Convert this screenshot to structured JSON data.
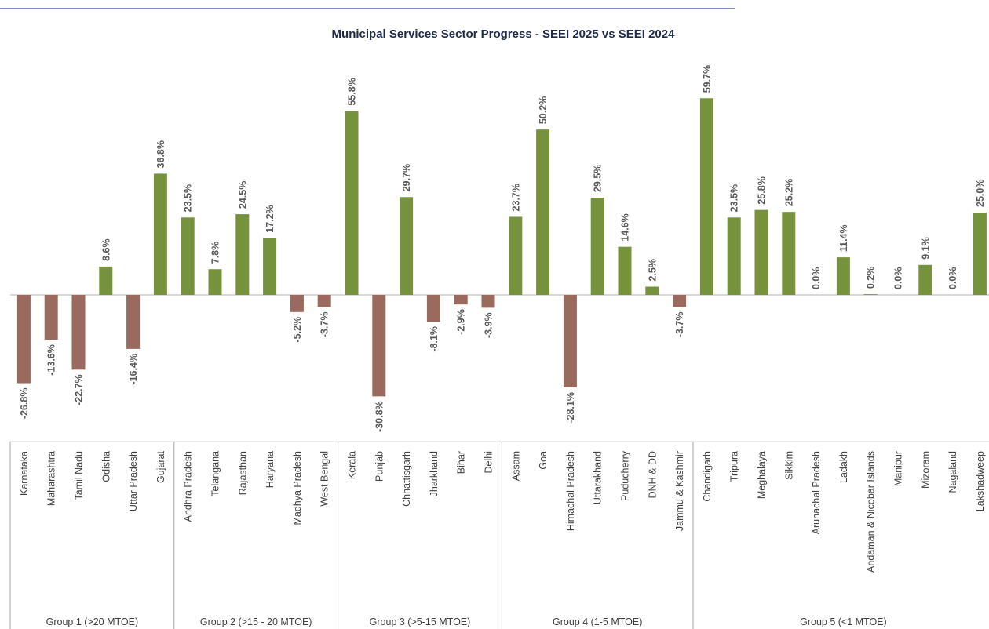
{
  "chart_data": {
    "type": "bar",
    "title": "Municipal Services Sector Progress  - SEEI 2025 vs SEEI 2024",
    "xlabel": "",
    "ylabel": "",
    "ylim": [
      -40,
      70
    ],
    "grid": false,
    "legend": "none",
    "value_suffix": "%",
    "colors": {
      "positive": "#76923c",
      "negative": "#996a5d",
      "axis": "#d9d9d9",
      "group_divider": "#a6a6a6"
    },
    "groups": [
      {
        "name": "Group 1 (>20 MTOE)",
        "start": 0,
        "end": 5
      },
      {
        "name": "Group 2 (>15 - 20 MTOE)",
        "start": 6,
        "end": 11
      },
      {
        "name": "Group 3 (>5-15 MTOE)",
        "start": 12,
        "end": 17
      },
      {
        "name": "Group 4 (1-5 MTOE)",
        "start": 18,
        "end": 24
      },
      {
        "name": "Group 5 (<1 MTOE)",
        "start": 25,
        "end": 35
      }
    ],
    "categories": [
      "Karnataka",
      "Maharashtra",
      "Tamil Nadu",
      "Odisha",
      "Uttar Pradesh",
      "Gujarat",
      "Andhra Pradesh",
      "Telangana",
      "Rajasthan",
      "Haryana",
      "Madhya Pradesh",
      "West Bengal",
      "Kerala",
      "Punjab",
      "Chhattisgarh",
      "Jharkhand",
      "Bihar",
      "Delhi",
      "Assam",
      "Goa",
      "Himachal Pradesh",
      "Uttarakhand",
      "Puducherry",
      "DNH & DD",
      "Jammu & Kashmir",
      "Chandigarh",
      "Tripura",
      "Meghalaya",
      "Sikkim",
      "Arunachal Pradesh",
      "Ladakh",
      "Andaman & Nicobar Islands",
      "Manipur",
      "Mizoram",
      "Nagaland",
      "Lakshadweep"
    ],
    "values": [
      -26.8,
      -13.6,
      -22.7,
      8.6,
      -16.4,
      36.8,
      23.5,
      7.8,
      24.5,
      17.2,
      -5.2,
      -3.7,
      55.8,
      -30.8,
      29.7,
      -8.1,
      -2.9,
      -3.9,
      23.7,
      50.2,
      -28.1,
      29.5,
      14.6,
      2.5,
      -3.7,
      59.7,
      23.5,
      25.8,
      25.2,
      0.0,
      11.4,
      0.2,
      0.0,
      9.1,
      0.0,
      25.0
    ],
    "data_labels": [
      "-26.8%",
      "-13.6%",
      "-22.7%",
      "8.6%",
      "-16.4%",
      "36.8%",
      "23.5%",
      "7.8%",
      "24.5%",
      "17.2%",
      "-5.2%",
      "-3.7%",
      "55.8%",
      "-30.8%",
      "29.7%",
      "-8.1%",
      "-2.9%",
      "-3.9%",
      "23.7%",
      "50.2%",
      "-28.1%",
      "29.5%",
      "14.6%",
      "2.5%",
      "-3.7%",
      "59.7%",
      "23.5%",
      "25.8%",
      "25.2%",
      "0.0%",
      "11.4%",
      "0.2%",
      "0.0%",
      "9.1%",
      "0.0%",
      "25.0%"
    ]
  }
}
